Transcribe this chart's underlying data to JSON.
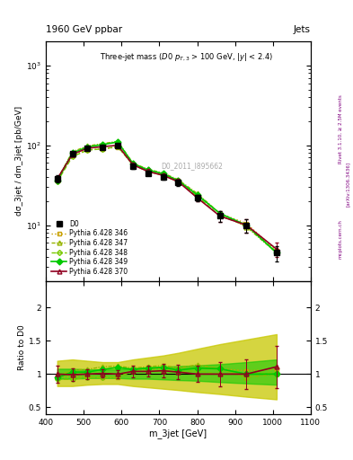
{
  "title_top": "1960 GeV ppbar",
  "title_top_right": "Jets",
  "xlabel": "m_3jet [GeV]",
  "ylabel_main": "dσ_3jet / dm_3jet [pb/GeV]",
  "ylabel_ratio": "Ratio to D0",
  "watermark": "D0_2011_I895662",
  "xlim": [
    400,
    1100
  ],
  "ylim_main": [
    2,
    2000
  ],
  "ylim_ratio": [
    0.4,
    2.4
  ],
  "x_d0": [
    430,
    470,
    510,
    550,
    590,
    630,
    670,
    710,
    750,
    800,
    860,
    930,
    1010
  ],
  "y_d0": [
    38,
    78,
    92,
    95,
    100,
    55,
    45,
    40,
    34,
    22,
    13,
    10,
    4.5
  ],
  "yerr_d0": [
    4,
    5,
    5,
    5,
    5,
    4,
    3,
    3,
    3,
    2,
    2,
    2,
    1
  ],
  "x_mc": [
    430,
    470,
    510,
    550,
    590,
    630,
    670,
    710,
    750,
    800,
    860,
    930,
    1010
  ],
  "y_346": [
    36,
    75,
    88,
    90,
    95,
    58,
    48,
    43,
    36,
    24,
    14,
    10.5,
    4.8
  ],
  "y_347": [
    37,
    83,
    98,
    105,
    112,
    60,
    50,
    45,
    37,
    25,
    14,
    9.5,
    4.5
  ],
  "y_348": [
    35,
    72,
    87,
    90,
    96,
    57,
    47,
    42,
    35,
    23,
    13,
    10,
    4.6
  ],
  "y_349": [
    36,
    80,
    95,
    102,
    110,
    59,
    49,
    44,
    36,
    24,
    14,
    10,
    4.5
  ],
  "y_370": [
    38,
    77,
    92,
    96,
    100,
    57,
    47,
    42,
    35,
    22,
    13,
    10,
    5.0
  ],
  "yerr_370": [
    3,
    4,
    4,
    4,
    4,
    4,
    3,
    3,
    3,
    2,
    2,
    2,
    1
  ],
  "ratio_346": [
    0.95,
    0.96,
    0.96,
    0.95,
    0.95,
    1.05,
    1.07,
    1.08,
    1.06,
    1.09,
    1.08,
    1.05,
    1.07
  ],
  "ratio_347": [
    0.97,
    1.06,
    1.07,
    1.11,
    1.12,
    1.09,
    1.11,
    1.13,
    1.09,
    1.14,
    1.08,
    0.95,
    1.0
  ],
  "ratio_348": [
    0.92,
    0.92,
    0.95,
    0.95,
    0.96,
    1.04,
    1.04,
    1.05,
    1.03,
    1.05,
    1.0,
    1.0,
    1.02
  ],
  "ratio_349": [
    0.95,
    1.03,
    1.03,
    1.07,
    1.1,
    1.07,
    1.09,
    1.1,
    1.06,
    1.09,
    1.08,
    1.0,
    1.0
  ],
  "ratio_370": [
    1.0,
    0.99,
    1.0,
    1.01,
    1.0,
    1.04,
    1.04,
    1.05,
    1.03,
    1.0,
    1.0,
    1.0,
    1.11
  ],
  "yerr_ratio_370": [
    0.13,
    0.09,
    0.07,
    0.06,
    0.06,
    0.09,
    0.08,
    0.1,
    0.11,
    0.12,
    0.18,
    0.22,
    0.32
  ],
  "band_green_lo": [
    0.93,
    0.93,
    0.94,
    0.94,
    0.94,
    0.93,
    0.93,
    0.92,
    0.91,
    0.9,
    0.88,
    0.86,
    0.84
  ],
  "band_green_hi": [
    1.08,
    1.08,
    1.07,
    1.07,
    1.07,
    1.09,
    1.1,
    1.11,
    1.12,
    1.13,
    1.15,
    1.18,
    1.22
  ],
  "band_yellow_lo": [
    0.82,
    0.82,
    0.84,
    0.85,
    0.85,
    0.82,
    0.8,
    0.78,
    0.76,
    0.73,
    0.7,
    0.66,
    0.62
  ],
  "band_yellow_hi": [
    1.2,
    1.22,
    1.2,
    1.18,
    1.18,
    1.22,
    1.25,
    1.28,
    1.32,
    1.38,
    1.45,
    1.52,
    1.6
  ],
  "color_d0": "#000000",
  "color_346": "#c8a000",
  "color_347": "#96b400",
  "color_348": "#78c800",
  "color_349": "#00c800",
  "color_370": "#900020",
  "color_band_green": "#00c800",
  "color_band_yellow": "#c8c800",
  "bg_color": "#ffffff"
}
